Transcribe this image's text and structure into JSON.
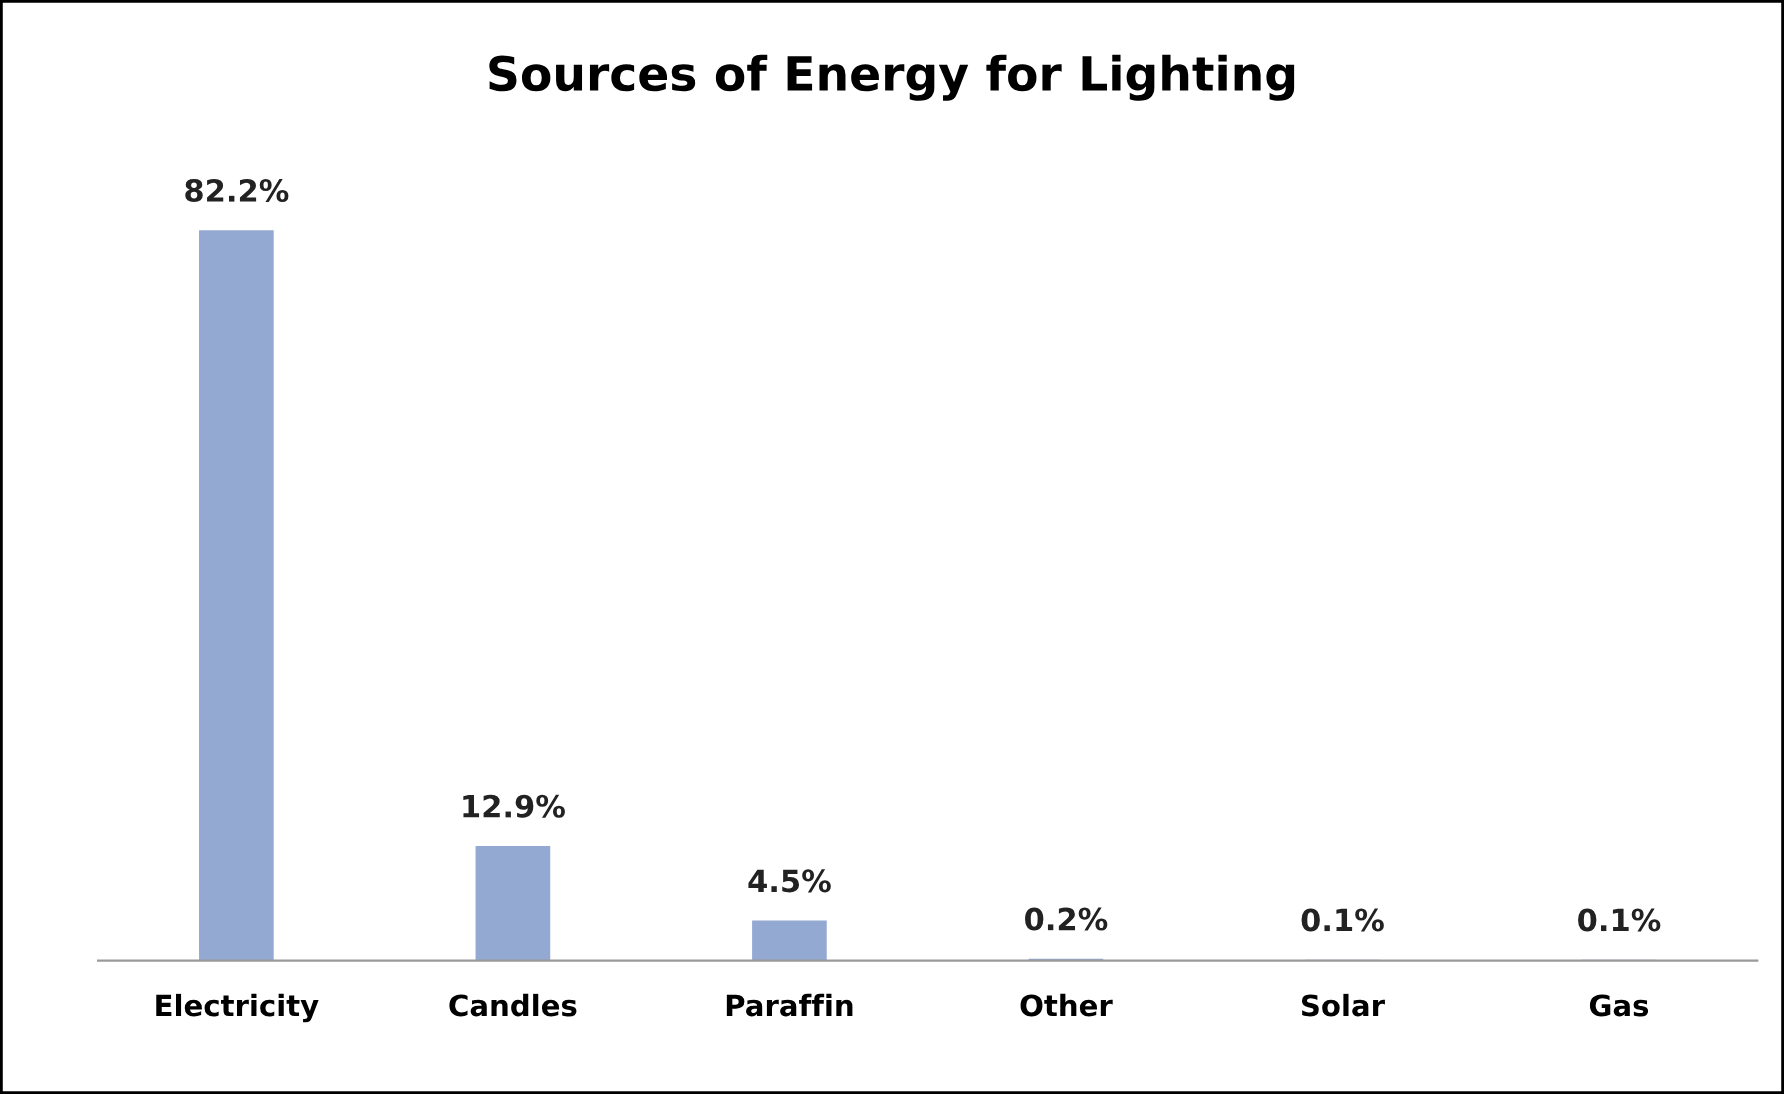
{
  "chart_data": {
    "type": "bar",
    "title": "Sources of Energy for Lighting",
    "categories": [
      "Electricity",
      "Candles",
      "Paraffin",
      "Other",
      "Solar",
      "Gas"
    ],
    "values": [
      82.2,
      12.9,
      4.5,
      0.2,
      0.1,
      0.1
    ],
    "value_labels": [
      "82.2%",
      "12.9%",
      "4.5%",
      "0.2%",
      "0.1%",
      "0.1%"
    ],
    "color": "#94a9d2",
    "grid": false,
    "legend": false
  }
}
